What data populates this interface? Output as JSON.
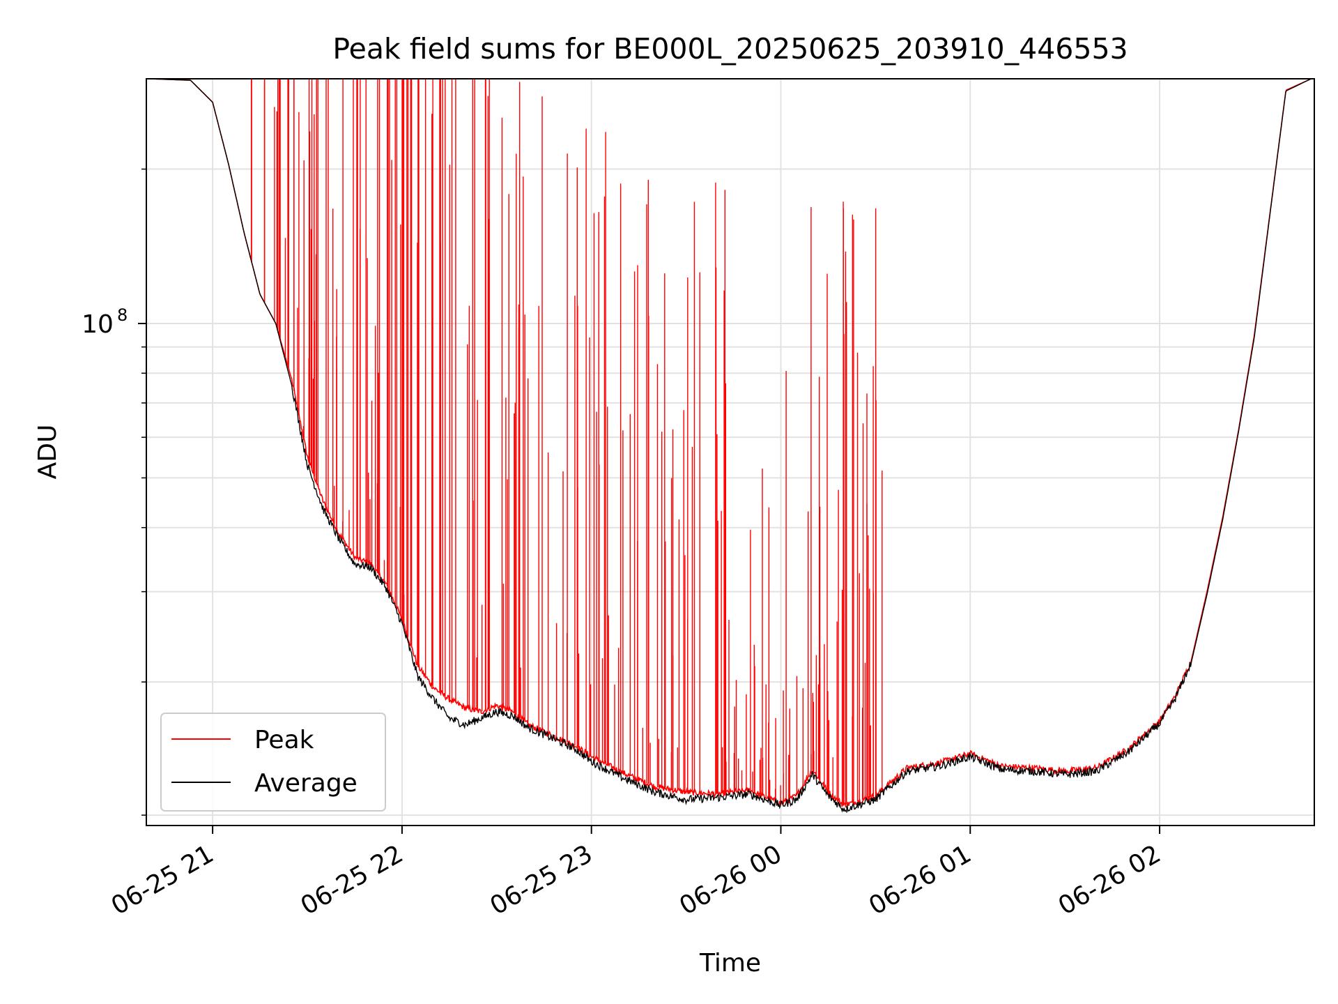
{
  "chart_data": {
    "type": "line",
    "title": "Peak field sums for BE000L_20250625_203910_446553",
    "xlabel": "Time",
    "ylabel": "ADU",
    "xlim": [
      "2025-06-25 20:39",
      "2025-06-26 02:49"
    ],
    "ylim": [
      10500000,
      300000000
    ],
    "yscale": "log",
    "grid": true,
    "legend_position": "lower-left",
    "x_ticks": [
      "06-25 21",
      "06-25 22",
      "06-25 23",
      "06-26 00",
      "06-26 01",
      "06-26 02"
    ],
    "y_ticks": [
      "10^8"
    ],
    "colors": {
      "Peak": "#ff0000",
      "Average": "#000000"
    },
    "series": [
      {
        "name": "Peak",
        "x": [
          "2025-06-25 20:40",
          "2025-06-25 20:53",
          "2025-06-25 21:00",
          "2025-06-25 21:05",
          "2025-06-25 21:10",
          "2025-06-25 21:15",
          "2025-06-25 21:20",
          "2025-06-25 21:25",
          "2025-06-25 21:30",
          "2025-06-25 21:35",
          "2025-06-25 21:40",
          "2025-06-25 21:45",
          "2025-06-25 21:50",
          "2025-06-25 21:55",
          "2025-06-25 22:00",
          "2025-06-25 22:05",
          "2025-06-25 22:10",
          "2025-06-25 22:15",
          "2025-06-25 22:20",
          "2025-06-25 22:25",
          "2025-06-25 22:30",
          "2025-06-25 22:35",
          "2025-06-25 22:40",
          "2025-06-25 22:45",
          "2025-06-25 22:50",
          "2025-06-25 22:55",
          "2025-06-25 23:00",
          "2025-06-25 23:10",
          "2025-06-25 23:20",
          "2025-06-25 23:30",
          "2025-06-25 23:40",
          "2025-06-25 23:50",
          "2025-06-26 00:00",
          "2025-06-26 00:05",
          "2025-06-26 00:10",
          "2025-06-26 00:15",
          "2025-06-26 00:20",
          "2025-06-26 00:30",
          "2025-06-26 00:40",
          "2025-06-26 00:50",
          "2025-06-26 01:00",
          "2025-06-26 01:10",
          "2025-06-26 01:20",
          "2025-06-26 01:30",
          "2025-06-26 01:40",
          "2025-06-26 01:50",
          "2025-06-26 02:00",
          "2025-06-26 02:05",
          "2025-06-26 02:10",
          "2025-06-26 02:15",
          "2025-06-26 02:20",
          "2025-06-26 02:25",
          "2025-06-26 02:30",
          "2025-06-26 02:35",
          "2025-06-26 02:40",
          "2025-06-26 02:48"
        ],
        "y": [
          300000000,
          298000000,
          270000000,
          205000000,
          150000000,
          114000000,
          100000000,
          78000000,
          55000000,
          45000000,
          39000000,
          35000000,
          34000000,
          31000000,
          26500000,
          21500000,
          19500000,
          18500000,
          17800000,
          17500000,
          18000000,
          17500000,
          16500000,
          16000000,
          15500000,
          15000000,
          14300000,
          13300000,
          12500000,
          12200000,
          12100000,
          12300000,
          11600000,
          12000000,
          13500000,
          12200000,
          11500000,
          12000000,
          13600000,
          13900000,
          14500000,
          13700000,
          13600000,
          13400000,
          13600000,
          14800000,
          16800000,
          18800000,
          22000000,
          30000000,
          42000000,
          62000000,
          95000000,
          165000000,
          285000000,
          300000000
        ]
      },
      {
        "name": "Average",
        "x": [
          "2025-06-25 20:40",
          "2025-06-25 20:53",
          "2025-06-25 21:00",
          "2025-06-25 21:05",
          "2025-06-25 21:10",
          "2025-06-25 21:15",
          "2025-06-25 21:20",
          "2025-06-25 21:25",
          "2025-06-25 21:30",
          "2025-06-25 21:35",
          "2025-06-25 21:40",
          "2025-06-25 21:45",
          "2025-06-25 21:50",
          "2025-06-25 21:55",
          "2025-06-25 22:00",
          "2025-06-25 22:05",
          "2025-06-25 22:10",
          "2025-06-25 22:15",
          "2025-06-25 22:20",
          "2025-06-25 22:25",
          "2025-06-25 22:30",
          "2025-06-25 22:35",
          "2025-06-25 22:40",
          "2025-06-25 22:45",
          "2025-06-25 22:50",
          "2025-06-25 22:55",
          "2025-06-25 23:00",
          "2025-06-25 23:10",
          "2025-06-25 23:20",
          "2025-06-25 23:30",
          "2025-06-25 23:40",
          "2025-06-25 23:50",
          "2025-06-26 00:00",
          "2025-06-26 00:05",
          "2025-06-26 00:10",
          "2025-06-26 00:15",
          "2025-06-26 00:20",
          "2025-06-26 00:30",
          "2025-06-26 00:40",
          "2025-06-26 00:50",
          "2025-06-26 01:00",
          "2025-06-26 01:10",
          "2025-06-26 01:20",
          "2025-06-26 01:30",
          "2025-06-26 01:40",
          "2025-06-26 01:50",
          "2025-06-26 02:00",
          "2025-06-26 02:05",
          "2025-06-26 02:10",
          "2025-06-26 02:15",
          "2025-06-26 02:20",
          "2025-06-26 02:25",
          "2025-06-26 02:30",
          "2025-06-26 02:35",
          "2025-06-26 02:40",
          "2025-06-26 02:48"
        ],
        "y": [
          300000000,
          298000000,
          270000000,
          205000000,
          150000000,
          114000000,
          100000000,
          76000000,
          53000000,
          43500000,
          38000000,
          34000000,
          33500000,
          30500000,
          26000000,
          20500000,
          18500000,
          17000000,
          16500000,
          17000000,
          17500000,
          17200000,
          16300000,
          15800000,
          15300000,
          14800000,
          14000000,
          13000000,
          12200000,
          11800000,
          11900000,
          12100000,
          11500000,
          11800000,
          13200000,
          12000000,
          11300000,
          11800000,
          13400000,
          13700000,
          14300000,
          13500000,
          13400000,
          13200000,
          13400000,
          14600000,
          16600000,
          18600000,
          21800000,
          29600000,
          41500000,
          61500000,
          94000000,
          164000000,
          284000000,
          300000000
        ]
      }
    ]
  }
}
